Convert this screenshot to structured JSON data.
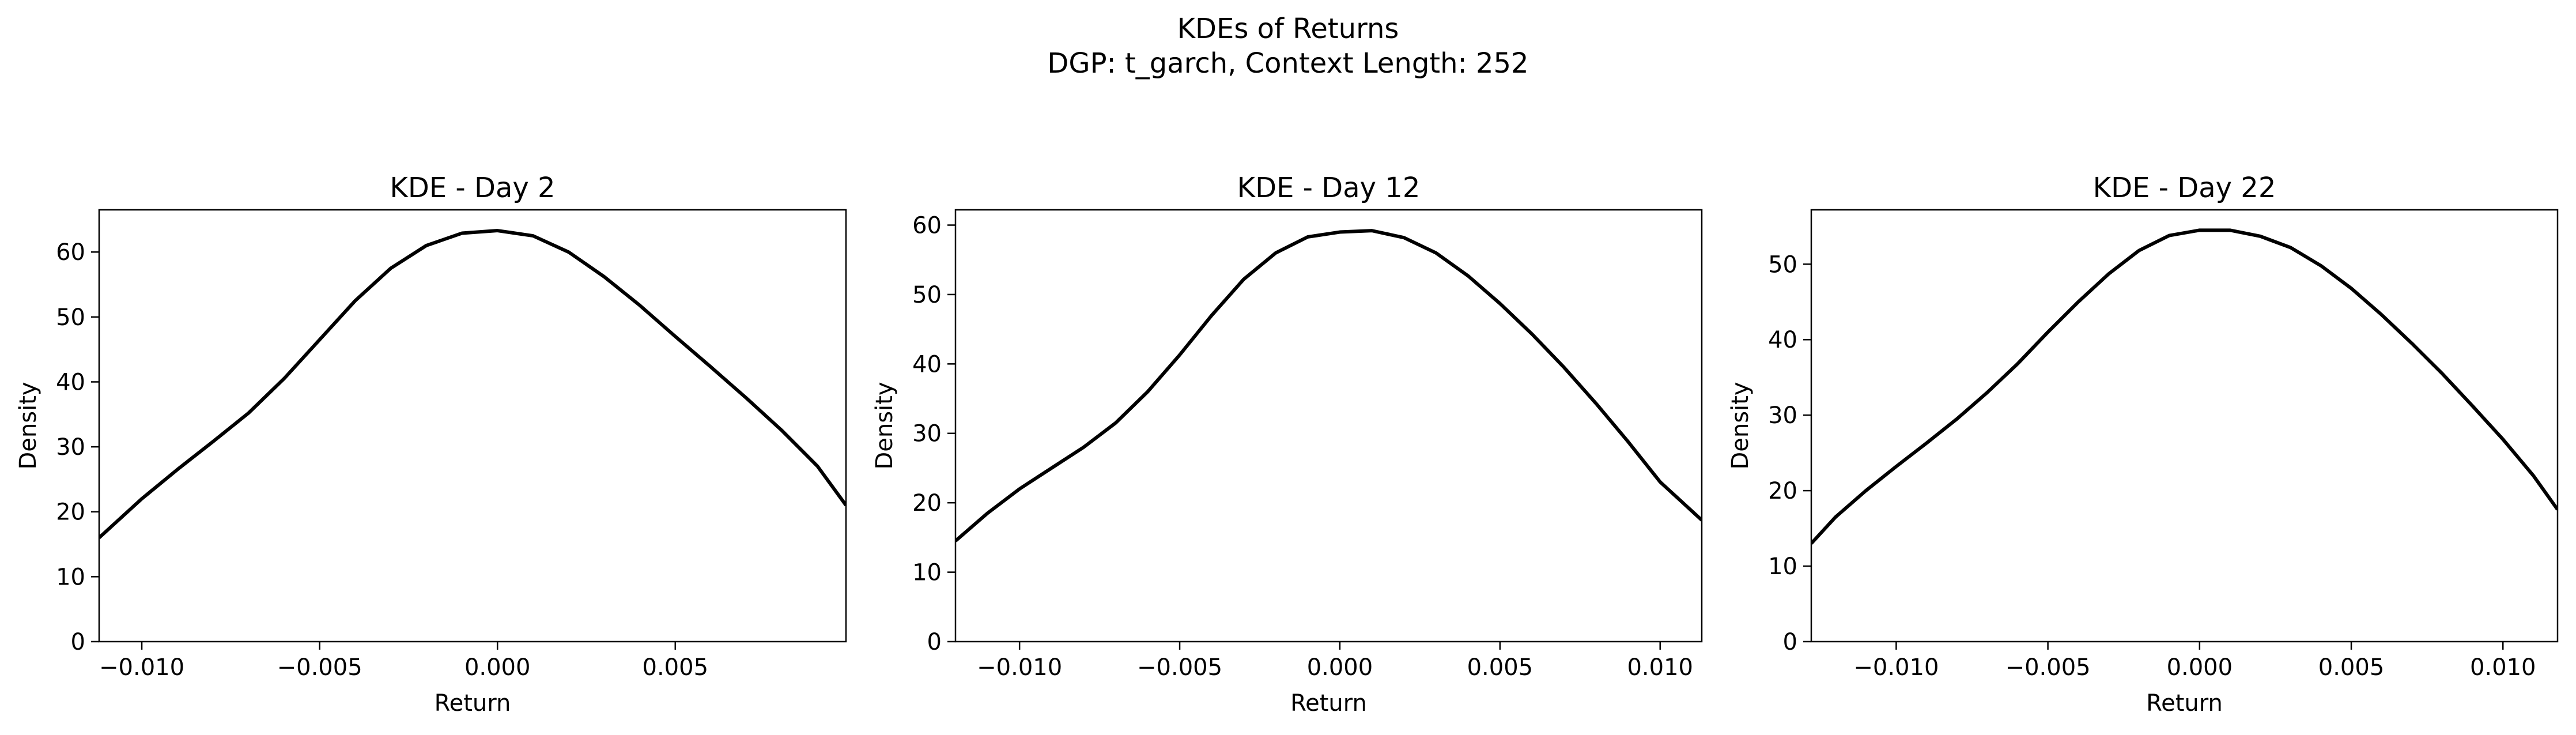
{
  "figure": {
    "title": "KDEs of Returns",
    "subtitle": "DGP: t_garch, Context Length: 252"
  },
  "chart_data": [
    {
      "type": "line",
      "title": "KDE - Day 2",
      "xlabel": "Return",
      "ylabel": "Density",
      "xlim": [
        -0.0112,
        0.0098
      ],
      "ylim": [
        0,
        66.5
      ],
      "xticks": [
        -0.01,
        -0.005,
        0.0,
        0.005
      ],
      "xtick_labels": [
        "−0.010",
        "−0.005",
        "0.000",
        "0.005"
      ],
      "yticks": [
        0,
        10,
        20,
        30,
        40,
        50,
        60
      ],
      "ytick_labels": [
        "0",
        "10",
        "20",
        "30",
        "40",
        "50",
        "60"
      ],
      "grid": false,
      "series": [
        {
          "color": "#000000",
          "x": [
            -0.0112,
            -0.01,
            -0.009,
            -0.008,
            -0.007,
            -0.006,
            -0.005,
            -0.004,
            -0.003,
            -0.002,
            -0.001,
            0.0,
            0.001,
            0.002,
            0.003,
            0.004,
            0.005,
            0.006,
            0.007,
            0.008,
            0.009,
            0.0098
          ],
          "y": [
            16.0,
            22.0,
            26.5,
            30.8,
            35.2,
            40.5,
            46.5,
            52.5,
            57.5,
            61.0,
            62.9,
            63.3,
            62.5,
            60.0,
            56.2,
            51.8,
            47.0,
            42.3,
            37.5,
            32.5,
            27.0,
            21.0
          ]
        }
      ]
    },
    {
      "type": "line",
      "title": "KDE - Day 12",
      "xlabel": "Return",
      "ylabel": "Density",
      "xlim": [
        -0.012,
        0.0113
      ],
      "ylim": [
        0,
        62.2
      ],
      "xticks": [
        -0.01,
        -0.005,
        0.0,
        0.005,
        0.01
      ],
      "xtick_labels": [
        "−0.010",
        "−0.005",
        "0.000",
        "0.005",
        "0.010"
      ],
      "yticks": [
        0,
        10,
        20,
        30,
        40,
        50,
        60
      ],
      "ytick_labels": [
        "0",
        "10",
        "20",
        "30",
        "40",
        "50",
        "60"
      ],
      "grid": false,
      "series": [
        {
          "color": "#000000",
          "x": [
            -0.012,
            -0.011,
            -0.01,
            -0.009,
            -0.008,
            -0.007,
            -0.006,
            -0.005,
            -0.004,
            -0.003,
            -0.002,
            -0.001,
            0.0,
            0.001,
            0.002,
            0.003,
            0.004,
            0.005,
            0.006,
            0.007,
            0.008,
            0.009,
            0.01,
            0.0113
          ],
          "y": [
            14.5,
            18.5,
            22.0,
            25.0,
            28.0,
            31.5,
            36.0,
            41.3,
            47.0,
            52.2,
            56.0,
            58.3,
            59.0,
            59.2,
            58.2,
            56.0,
            52.7,
            48.7,
            44.3,
            39.5,
            34.3,
            28.8,
            23.0,
            17.5
          ]
        }
      ]
    },
    {
      "type": "line",
      "title": "KDE - Day 22",
      "xlabel": "Return",
      "ylabel": "Density",
      "xlim": [
        -0.0128,
        0.0118
      ],
      "ylim": [
        0,
        57.2
      ],
      "xticks": [
        -0.01,
        -0.005,
        0.0,
        0.005,
        0.01
      ],
      "xtick_labels": [
        "−0.010",
        "−0.005",
        "0.000",
        "0.005",
        "0.010"
      ],
      "yticks": [
        0,
        10,
        20,
        30,
        40,
        50
      ],
      "ytick_labels": [
        "0",
        "10",
        "20",
        "30",
        "40",
        "50"
      ],
      "grid": false,
      "series": [
        {
          "color": "#000000",
          "x": [
            -0.0128,
            -0.012,
            -0.011,
            -0.01,
            -0.009,
            -0.008,
            -0.007,
            -0.006,
            -0.005,
            -0.004,
            -0.003,
            -0.002,
            -0.001,
            0.0,
            0.001,
            0.002,
            0.003,
            0.004,
            0.005,
            0.006,
            0.007,
            0.008,
            0.009,
            0.01,
            0.011,
            0.0118
          ],
          "y": [
            13.0,
            16.5,
            20.0,
            23.2,
            26.3,
            29.5,
            33.0,
            36.8,
            41.0,
            45.0,
            48.7,
            51.8,
            53.8,
            54.5,
            54.5,
            53.7,
            52.2,
            49.8,
            46.8,
            43.3,
            39.5,
            35.5,
            31.2,
            26.8,
            22.0,
            17.5
          ]
        }
      ]
    }
  ]
}
